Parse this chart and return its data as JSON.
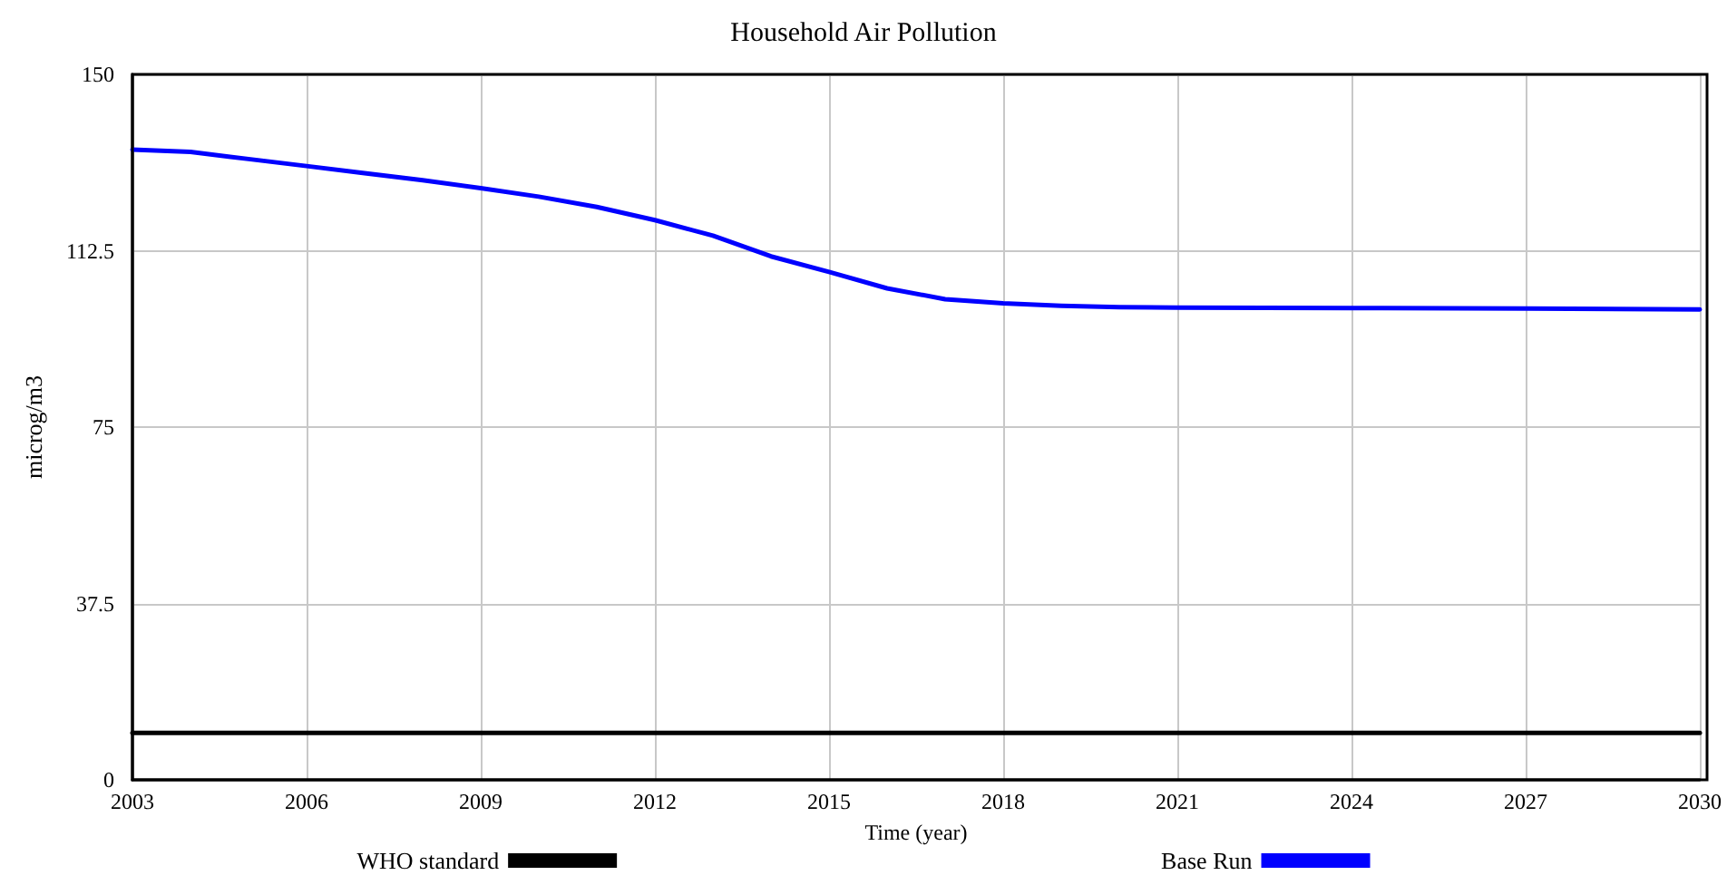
{
  "chart_data": {
    "type": "line",
    "title": "Household Air Pollution",
    "xlabel": "Time (year)",
    "ylabel": "microg/m3",
    "xlim": [
      2003,
      2030
    ],
    "xticks": [
      2003,
      2006,
      2009,
      2012,
      2015,
      2018,
      2021,
      2024,
      2027,
      2030
    ],
    "ylim": [
      0,
      150
    ],
    "yticks": [
      0,
      37.5,
      75,
      112.5,
      150
    ],
    "grid": true,
    "legend": "bottom",
    "series": [
      {
        "name": "WHO standard",
        "color": "#000000",
        "x": [
          2003,
          2030
        ],
        "values": [
          10,
          10
        ]
      },
      {
        "name": "Base Run",
        "color": "#0000ff",
        "x": [
          2003,
          2004,
          2005,
          2006,
          2007,
          2008,
          2009,
          2010,
          2011,
          2012,
          2013,
          2014,
          2015,
          2016,
          2017,
          2018,
          2019,
          2020,
          2021,
          2024,
          2027,
          2030
        ],
        "values": [
          134,
          133.5,
          132,
          130.5,
          129,
          127.5,
          125.8,
          124,
          121.8,
          119,
          115.7,
          111.3,
          108,
          104.5,
          102.2,
          101.3,
          100.8,
          100.5,
          100.4,
          100.3,
          100.2,
          100
        ]
      }
    ]
  }
}
